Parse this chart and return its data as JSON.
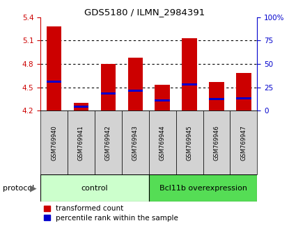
{
  "title": "GDS5180 / ILMN_2984391",
  "samples": [
    "GSM769940",
    "GSM769941",
    "GSM769942",
    "GSM769943",
    "GSM769944",
    "GSM769945",
    "GSM769946",
    "GSM769947"
  ],
  "bar_values": [
    5.28,
    4.3,
    4.8,
    4.88,
    4.53,
    5.13,
    4.57,
    4.68
  ],
  "bar_base": 4.2,
  "percentile_values": [
    4.57,
    4.25,
    4.42,
    4.46,
    4.33,
    4.54,
    4.35,
    4.36
  ],
  "bar_color": "#cc0000",
  "percentile_color": "#0000cc",
  "ylim_left": [
    4.2,
    5.4
  ],
  "ylim_right": [
    0,
    100
  ],
  "yticks_left": [
    4.2,
    4.5,
    4.8,
    5.1,
    5.4
  ],
  "yticks_right": [
    0,
    25,
    50,
    75,
    100
  ],
  "ytick_labels_right": [
    "0",
    "25",
    "50",
    "75",
    "100%"
  ],
  "grid_values": [
    4.5,
    4.8,
    5.1
  ],
  "control_label": "control",
  "overexpression_label": "Bcl11b overexpression",
  "protocol_label": "protocol",
  "legend_red_label": "transformed count",
  "legend_blue_label": "percentile rank within the sample",
  "control_color": "#ccffcc",
  "overexpression_color": "#55dd55",
  "sample_box_color": "#d3d3d3",
  "bar_width": 0.55,
  "left_tick_color": "#cc0000",
  "right_tick_color": "#0000cc"
}
